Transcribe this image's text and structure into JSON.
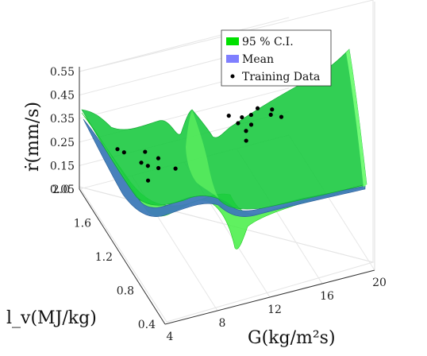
{
  "chart_data": {
    "type": "surface",
    "title": "",
    "xlabel": "G(kg/m²s)",
    "ylabel": "l_v(MJ/kg)",
    "zlabel": "ṙ(mm/s)",
    "x_ticks": [
      "4",
      "8",
      "12",
      "16",
      "20"
    ],
    "y_ticks": [
      "0.4",
      "0.8",
      "1.2",
      "1.6",
      "2.0"
    ],
    "z_ticks": [
      "0.05",
      "0.15",
      "0.25",
      "0.35",
      "0.45",
      "0.55"
    ],
    "xlim": [
      4,
      20
    ],
    "ylim": [
      0.4,
      2.0
    ],
    "zlim": [
      0.05,
      0.55
    ],
    "grid": true,
    "legend_position": "top-right",
    "series": [
      {
        "name": "95 % C.I.",
        "color": "#00e000"
      },
      {
        "name": "Mean",
        "color": "#7f7fff"
      },
      {
        "name": "Training Data",
        "color": "#000000"
      }
    ],
    "training_points": [
      {
        "G": 6.5,
        "lv": 1.9
      },
      {
        "G": 6.8,
        "lv": 1.85
      },
      {
        "G": 7.5,
        "lv": 1.7
      },
      {
        "G": 7.8,
        "lv": 1.65
      },
      {
        "G": 8.2,
        "lv": 1.8
      },
      {
        "G": 8.4,
        "lv": 1.6
      },
      {
        "G": 8.8,
        "lv": 1.7
      },
      {
        "G": 7.2,
        "lv": 1.5
      },
      {
        "G": 9.5,
        "lv": 1.55
      },
      {
        "G": 15.0,
        "lv": 1.9
      },
      {
        "G": 15.3,
        "lv": 1.8
      },
      {
        "G": 15.5,
        "lv": 1.7
      },
      {
        "G": 15.8,
        "lv": 1.85
      },
      {
        "G": 16.1,
        "lv": 1.75
      },
      {
        "G": 16.5,
        "lv": 1.85
      },
      {
        "G": 17.2,
        "lv": 1.9
      },
      {
        "G": 17.8,
        "lv": 1.8
      },
      {
        "G": 18.1,
        "lv": 1.85
      },
      {
        "G": 18.4,
        "lv": 1.75
      },
      {
        "G": 15.1,
        "lv": 1.6
      }
    ]
  }
}
